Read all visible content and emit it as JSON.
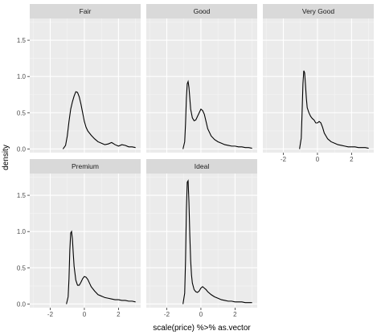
{
  "chart_data": {
    "type": "line",
    "xlabel": "scale(price) %>% as.vector",
    "ylabel": "density",
    "xlim": [
      -3.2,
      3.3
    ],
    "ylim": [
      -0.05,
      1.8
    ],
    "x_ticks": [
      -2,
      0,
      2
    ],
    "y_ticks": [
      0.0,
      0.5,
      1.0,
      1.5
    ],
    "x_tick_labels": [
      "-2",
      "0",
      "2"
    ],
    "y_tick_labels": [
      "0.0",
      "0.5",
      "1.0",
      "1.5"
    ],
    "grid": true,
    "layout": "facet_wrap 3 columns",
    "panel_background": "#ebebeb",
    "strip_background": "#d9d9d9",
    "line_color": "#000000",
    "facets": [
      {
        "label": "Fair",
        "x": [
          -1.25,
          -1.1,
          -1.0,
          -0.9,
          -0.8,
          -0.7,
          -0.6,
          -0.5,
          -0.4,
          -0.3,
          -0.2,
          -0.1,
          0.0,
          0.1,
          0.2,
          0.4,
          0.6,
          0.8,
          1.0,
          1.2,
          1.4,
          1.6,
          1.8,
          2.0,
          2.2,
          2.4,
          2.6,
          2.8,
          3.0
        ],
        "y": [
          0.0,
          0.05,
          0.18,
          0.38,
          0.55,
          0.65,
          0.73,
          0.79,
          0.78,
          0.72,
          0.62,
          0.5,
          0.38,
          0.3,
          0.25,
          0.19,
          0.14,
          0.1,
          0.08,
          0.06,
          0.07,
          0.09,
          0.06,
          0.04,
          0.06,
          0.05,
          0.03,
          0.03,
          0.02
        ]
      },
      {
        "label": "Good",
        "x": [
          -1.05,
          -0.95,
          -0.9,
          -0.85,
          -0.8,
          -0.75,
          -0.7,
          -0.65,
          -0.6,
          -0.5,
          -0.4,
          -0.3,
          -0.2,
          -0.1,
          0.0,
          0.1,
          0.2,
          0.3,
          0.4,
          0.6,
          0.8,
          1.0,
          1.2,
          1.4,
          1.6,
          1.8,
          2.0,
          2.2,
          2.4,
          2.6,
          2.8,
          3.0
        ],
        "y": [
          0.0,
          0.1,
          0.35,
          0.7,
          0.9,
          0.93,
          0.85,
          0.7,
          0.55,
          0.43,
          0.39,
          0.4,
          0.45,
          0.5,
          0.55,
          0.53,
          0.48,
          0.38,
          0.28,
          0.18,
          0.13,
          0.1,
          0.08,
          0.06,
          0.05,
          0.04,
          0.04,
          0.03,
          0.03,
          0.02,
          0.02,
          0.01
        ]
      },
      {
        "label": "Very Good",
        "x": [
          -1.05,
          -0.95,
          -0.9,
          -0.85,
          -0.8,
          -0.75,
          -0.7,
          -0.65,
          -0.6,
          -0.5,
          -0.4,
          -0.3,
          -0.2,
          -0.1,
          0.0,
          0.1,
          0.2,
          0.3,
          0.4,
          0.6,
          0.8,
          1.0,
          1.2,
          1.4,
          1.6,
          1.8,
          2.0,
          2.2,
          2.4,
          2.6,
          2.8,
          3.0
        ],
        "y": [
          0.0,
          0.15,
          0.5,
          0.9,
          1.08,
          1.05,
          0.88,
          0.7,
          0.57,
          0.5,
          0.45,
          0.42,
          0.4,
          0.36,
          0.36,
          0.38,
          0.36,
          0.3,
          0.22,
          0.14,
          0.1,
          0.08,
          0.06,
          0.05,
          0.04,
          0.03,
          0.03,
          0.03,
          0.02,
          0.02,
          0.02,
          0.01
        ]
      },
      {
        "label": "Premium",
        "x": [
          -1.05,
          -0.95,
          -0.9,
          -0.85,
          -0.8,
          -0.75,
          -0.7,
          -0.65,
          -0.6,
          -0.5,
          -0.4,
          -0.3,
          -0.2,
          -0.1,
          0.0,
          0.1,
          0.2,
          0.3,
          0.4,
          0.6,
          0.8,
          1.0,
          1.2,
          1.4,
          1.6,
          1.8,
          2.0,
          2.2,
          2.4,
          2.6,
          2.8,
          3.0
        ],
        "y": [
          0.0,
          0.1,
          0.35,
          0.75,
          0.98,
          1.0,
          0.9,
          0.7,
          0.52,
          0.33,
          0.26,
          0.26,
          0.3,
          0.35,
          0.38,
          0.37,
          0.34,
          0.29,
          0.24,
          0.18,
          0.13,
          0.11,
          0.09,
          0.08,
          0.07,
          0.06,
          0.06,
          0.05,
          0.05,
          0.04,
          0.04,
          0.03
        ]
      },
      {
        "label": "Ideal",
        "x": [
          -1.05,
          -0.95,
          -0.9,
          -0.85,
          -0.8,
          -0.75,
          -0.7,
          -0.65,
          -0.6,
          -0.55,
          -0.5,
          -0.4,
          -0.3,
          -0.2,
          -0.1,
          0.0,
          0.1,
          0.2,
          0.3,
          0.4,
          0.6,
          0.8,
          1.0,
          1.2,
          1.4,
          1.6,
          1.8,
          2.0,
          2.2,
          2.4,
          2.6,
          2.8,
          3.0
        ],
        "y": [
          0.0,
          0.15,
          0.6,
          1.3,
          1.68,
          1.7,
          1.4,
          0.95,
          0.6,
          0.4,
          0.29,
          0.2,
          0.17,
          0.16,
          0.18,
          0.22,
          0.24,
          0.22,
          0.2,
          0.17,
          0.13,
          0.1,
          0.08,
          0.06,
          0.05,
          0.04,
          0.04,
          0.03,
          0.03,
          0.03,
          0.02,
          0.02,
          0.02
        ]
      }
    ]
  }
}
